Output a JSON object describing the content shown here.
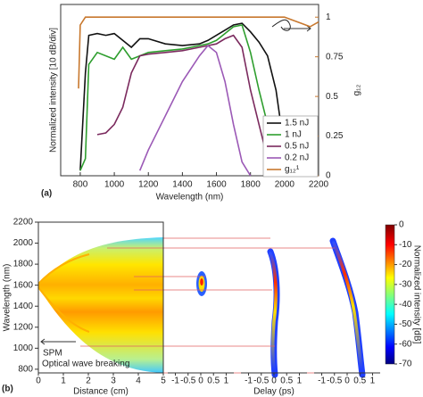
{
  "chart_data": [
    {
      "type": "line",
      "label": "(a)",
      "xlabel": "Wavelength (nm)",
      "ylabel": "Normalized intensity [10 dB/div]",
      "y2label": "g₁₂",
      "xlim": [
        685,
        2200
      ],
      "xticks": [
        800,
        1000,
        1200,
        1400,
        1600,
        1800,
        2000,
        2200
      ],
      "ylim": [
        0,
        10
      ],
      "y2lim": [
        0,
        1.08
      ],
      "y2ticks": [
        0,
        0.25,
        0.5,
        0.75,
        1
      ],
      "legend": "lower right",
      "x": [
        790,
        800,
        830,
        850,
        900,
        950,
        1000,
        1050,
        1100,
        1150,
        1200,
        1300,
        1400,
        1500,
        1550,
        1600,
        1650,
        1700,
        1750,
        1800,
        1850,
        1900,
        1950,
        2000,
        2050,
        2100,
        2150,
        2200
      ],
      "series": [
        {
          "name": "1.5 nJ",
          "color": "#111111",
          "values": [
            null,
            0.3,
            6,
            8.2,
            8.3,
            8.2,
            8.3,
            7.9,
            7.5,
            8,
            8,
            7.7,
            7.6,
            7.7,
            7.9,
            8.2,
            8.5,
            8.8,
            8.9,
            8.4,
            7.8,
            7,
            5,
            1.5,
            null,
            null,
            null,
            null
          ]
        },
        {
          "name": "1 nJ",
          "color": "#2e9e2e",
          "values": [
            null,
            0.3,
            1,
            6.5,
            7.2,
            7,
            6.8,
            7.5,
            6.8,
            7,
            7.2,
            7.3,
            7.4,
            7.6,
            7.7,
            7.9,
            8.3,
            8.7,
            8.8,
            7.2,
            5,
            3,
            1,
            0,
            null,
            null,
            null,
            null
          ]
        },
        {
          "name": "0.5 nJ",
          "color": "#7b2a5e",
          "values": [
            null,
            null,
            null,
            null,
            2.4,
            2.5,
            3,
            4,
            6,
            7,
            7.1,
            7.2,
            7.3,
            7.5,
            7.6,
            7.7,
            8,
            8.2,
            7.5,
            5,
            3,
            1,
            0,
            null,
            null,
            null,
            null,
            null
          ]
        },
        {
          "name": "0.2 nJ",
          "color": "#9b59b6",
          "values": [
            null,
            null,
            null,
            null,
            null,
            null,
            null,
            null,
            null,
            0.3,
            1.5,
            3.5,
            5.5,
            7,
            7.6,
            7.2,
            5.5,
            3,
            0.8,
            0,
            null,
            null,
            null,
            null,
            null,
            null,
            null,
            null
          ]
        },
        {
          "name": "g₁₂¹",
          "color": "#c8782e",
          "axis": "y2",
          "values": [
            0.55,
            0.95,
            1,
            1,
            1,
            1,
            1,
            1,
            1,
            1,
            1,
            1,
            1,
            1,
            1,
            1,
            1,
            1,
            1,
            1,
            1,
            1,
            1,
            1,
            0.98,
            0.96,
            0.94,
            0.97
          ]
        }
      ]
    },
    {
      "type": "spectrogram",
      "label": "(b)",
      "ylabel": "Wavelength (nm)",
      "ylim": [
        765,
        2200
      ],
      "yticks": [
        800,
        1000,
        1200,
        1400,
        1600,
        1800,
        2000,
        2200
      ],
      "distance": {
        "xlabel": "Distance (cm)",
        "xlim": [
          0,
          5
        ],
        "xticks": [
          0,
          1,
          2,
          3,
          4,
          5
        ]
      },
      "delay": {
        "xlabel": "Delay (ps)",
        "xlim": [
          -1.3,
          1.3
        ],
        "xticks": [
          -1,
          -0.5,
          0,
          0.5,
          1
        ]
      },
      "colorbar": {
        "label": "Normalized intensity [dB]",
        "lim": [
          -70,
          0
        ],
        "ticks": [
          0,
          -10,
          -20,
          -30,
          -40,
          -50,
          -60,
          -70
        ]
      },
      "annotations": [
        "SPM",
        "Optical wave breaking"
      ]
    }
  ]
}
